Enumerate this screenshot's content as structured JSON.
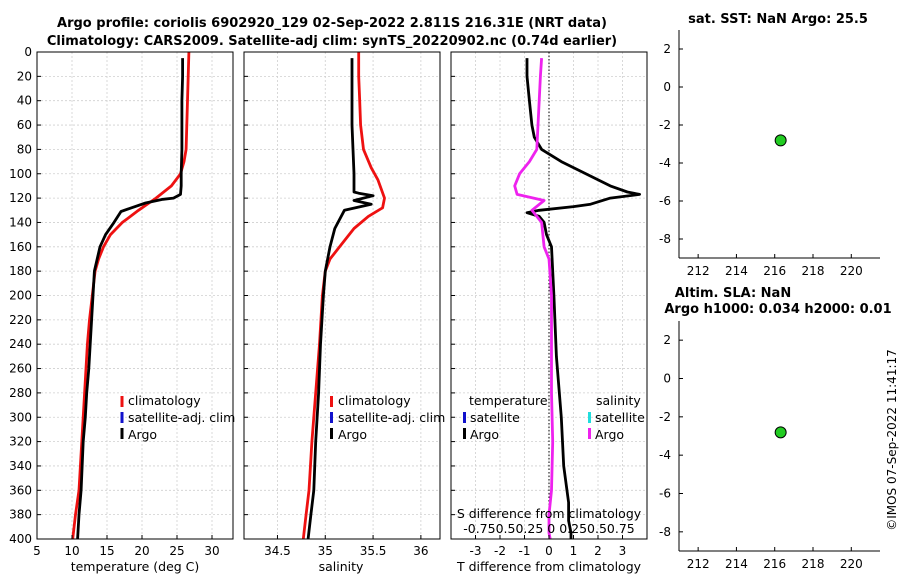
{
  "figure": {
    "title_line1": "Argo profile: coriolis 6902920_129 02-Sep-2022 2.811S 216.31E (NRT data)",
    "title_line2": "Climatology: CARS2009. Satellite-adj clim: synTS_20220902.nc (0.74d earlier)",
    "watermark": "©IMOS 07-Sep-2022 11:41:17",
    "colors": {
      "climatology": "#ee1111",
      "satellite": "#1111cc",
      "argo": "#000000",
      "satellite_s": "#22dddd",
      "argo_s": "#ee22ee",
      "marker_fill": "#22cc22"
    }
  },
  "chart_data": [
    {
      "type": "line",
      "panel": "temperature",
      "xlabel": "temperature (deg C)",
      "xlim": [
        5,
        33
      ],
      "xticks": [
        5,
        10,
        15,
        20,
        25,
        30
      ],
      "ylim": [
        0,
        400
      ],
      "yticks": [
        0,
        20,
        40,
        60,
        80,
        100,
        120,
        140,
        160,
        180,
        200,
        220,
        240,
        260,
        280,
        300,
        320,
        340,
        360,
        380,
        400
      ],
      "legend": [
        "climatology",
        "satellite-adj. clim",
        "Argo"
      ],
      "series": [
        {
          "name": "climatology",
          "color": "#ee1111",
          "x": [
            26.7,
            26.6,
            26.5,
            26.4,
            26.3,
            26.0,
            25.5,
            24.2,
            22.0,
            19.5,
            17.2,
            15.5,
            14.5,
            13.8,
            13.3,
            12.9,
            12.5,
            12.2,
            11.8,
            11.4,
            11.0,
            10.5,
            10.1
          ],
          "y": [
            0,
            20,
            40,
            60,
            80,
            90,
            100,
            110,
            120,
            130,
            140,
            150,
            160,
            170,
            180,
            200,
            220,
            240,
            280,
            320,
            360,
            380,
            400
          ]
        },
        {
          "name": "Argo",
          "color": "#000000",
          "x": [
            25.8,
            25.8,
            25.7,
            25.7,
            25.7,
            25.6,
            25.6,
            25.5,
            24.5,
            23.0,
            20.5,
            18.5,
            17.0,
            16.0,
            14.8,
            14.0,
            13.6,
            13.2,
            13.0,
            12.8,
            12.6,
            12.4,
            12.1,
            11.9,
            11.6,
            11.3,
            11.0,
            10.8
          ],
          "y": [
            5,
            20,
            40,
            60,
            80,
            100,
            110,
            117,
            120,
            121,
            124,
            128,
            131,
            140,
            150,
            160,
            170,
            180,
            200,
            220,
            240,
            260,
            280,
            300,
            320,
            360,
            380,
            400
          ]
        }
      ]
    },
    {
      "type": "line",
      "panel": "salinity",
      "xlabel": "salinity",
      "xlim": [
        34.15,
        36.2
      ],
      "xticks": [
        34.5,
        35,
        35.5,
        36
      ],
      "xticklabels": [
        "34.5",
        "35",
        "35.5",
        "36"
      ],
      "ylim": [
        0,
        400
      ],
      "legend": [
        "climatology",
        "satellite-adj. clim",
        "Argo"
      ],
      "series": [
        {
          "name": "climatology",
          "color": "#ee1111",
          "x": [
            35.35,
            35.35,
            35.36,
            35.37,
            35.4,
            35.48,
            35.55,
            35.62,
            35.6,
            35.45,
            35.3,
            35.15,
            35.05,
            35.0,
            34.97,
            34.94,
            34.9,
            34.86,
            34.83,
            34.8,
            34.77
          ],
          "y": [
            0,
            20,
            40,
            60,
            80,
            95,
            105,
            120,
            128,
            135,
            145,
            160,
            170,
            180,
            200,
            240,
            280,
            320,
            360,
            380,
            400
          ]
        },
        {
          "name": "Argo",
          "color": "#000000",
          "x": [
            35.28,
            35.28,
            35.28,
            35.28,
            35.29,
            35.3,
            35.3,
            35.35,
            35.5,
            35.3,
            35.48,
            35.2,
            35.1,
            35.05,
            35.0,
            34.98,
            34.95,
            34.93,
            34.9,
            34.88,
            34.85,
            34.82
          ],
          "y": [
            5,
            20,
            40,
            60,
            80,
            100,
            115,
            116,
            118,
            122,
            125,
            130,
            145,
            160,
            180,
            200,
            240,
            280,
            320,
            360,
            380,
            400
          ]
        }
      ]
    },
    {
      "type": "line",
      "panel": "difference",
      "xlabel": "T difference from climatology",
      "xlabel_top": "S difference from climatology",
      "xlim": [
        -4,
        4
      ],
      "xticks": [
        -3,
        -2,
        -1,
        0,
        1,
        2,
        3
      ],
      "ylim": [
        0,
        400
      ],
      "s_ticklabels": "-0.750.50.25 0 0.250.50.75",
      "legend_titles": [
        "temperature",
        "salinity"
      ],
      "legend_left": [
        "satellite",
        "Argo"
      ],
      "legend_right": [
        "satellite",
        "Argo"
      ],
      "series": [
        {
          "name": "T Argo",
          "color": "#000000",
          "x": [
            -0.9,
            -0.9,
            -0.8,
            -0.7,
            -0.6,
            -0.3,
            0.5,
            1.5,
            2.5,
            3.2,
            3.7,
            2.5,
            1.7,
            1.0,
            -0.4,
            -0.9,
            -0.4,
            -0.2,
            -0.1,
            0.1,
            0.2,
            0.3,
            0.5,
            0.6,
            0.8,
            0.8,
            0.9,
            0.9
          ],
          "y": [
            5,
            20,
            40,
            60,
            70,
            80,
            90,
            100,
            110,
            115,
            117,
            120,
            125,
            127,
            130,
            132,
            135,
            140,
            150,
            160,
            200,
            250,
            300,
            340,
            370,
            385,
            395,
            400
          ]
        },
        {
          "name": "S Argo",
          "color": "#ee22ee",
          "x": [
            -0.3,
            -0.35,
            -0.4,
            -0.45,
            -0.5,
            -0.8,
            -1.2,
            -1.4,
            -1.3,
            -0.2,
            -0.7,
            -0.3,
            -0.2,
            0.0,
            0.1,
            0.1,
            0.1,
            0.15,
            0.1,
            0.0,
            0.0,
            0.05
          ],
          "y": [
            5,
            20,
            40,
            60,
            80,
            90,
            100,
            110,
            117,
            122,
            130,
            140,
            160,
            170,
            200,
            240,
            280,
            320,
            360,
            380,
            395,
            400
          ]
        }
      ]
    },
    {
      "type": "scatter",
      "panel": "sst_map",
      "title": "sat. SST: NaN Argo: 25.5",
      "xlim": [
        211,
        221.5
      ],
      "xticks": [
        212,
        214,
        216,
        218,
        220
      ],
      "ylim": [
        -9,
        3
      ],
      "yticks": [
        2,
        0,
        -2,
        -4,
        -6,
        -8
      ],
      "points": [
        {
          "x": 216.31,
          "y": -2.811
        }
      ]
    },
    {
      "type": "scatter",
      "panel": "sla_map",
      "title_line1": "Altim. SLA: NaN",
      "title_line2": "Argo h1000: 0.034 h2000: 0.01",
      "xlim": [
        211,
        221.5
      ],
      "xticks": [
        212,
        214,
        216,
        218,
        220
      ],
      "ylim": [
        -9,
        3
      ],
      "yticks": [
        2,
        0,
        -2,
        -4,
        -6,
        -8
      ],
      "points": [
        {
          "x": 216.31,
          "y": -2.811
        }
      ]
    }
  ]
}
